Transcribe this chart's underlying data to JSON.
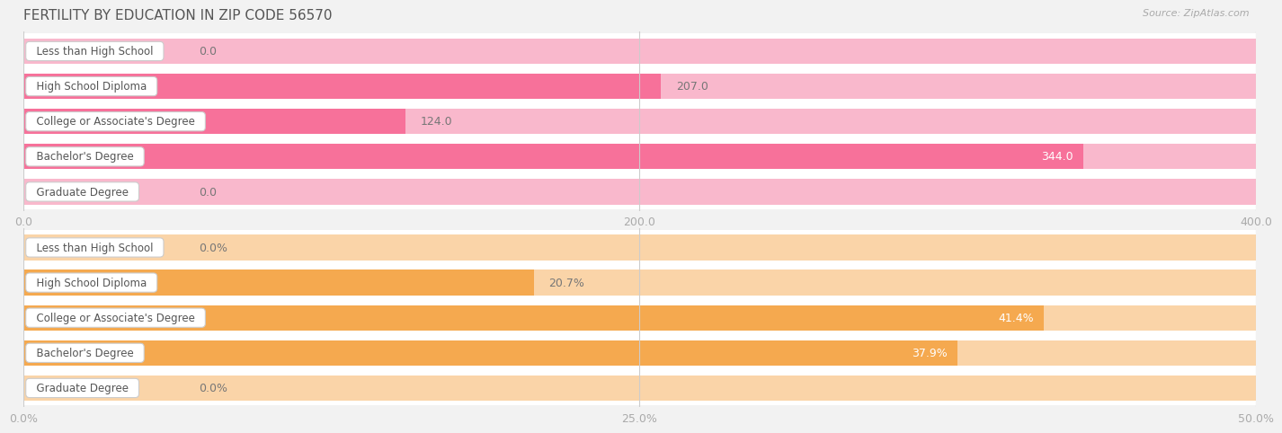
{
  "title": "FERTILITY BY EDUCATION IN ZIP CODE 56570",
  "source_text": "Source: ZipAtlas.com",
  "chart1": {
    "categories": [
      "Less than High School",
      "High School Diploma",
      "College or Associate's Degree",
      "Bachelor's Degree",
      "Graduate Degree"
    ],
    "values": [
      0.0,
      207.0,
      124.0,
      344.0,
      0.0
    ],
    "xlim": [
      0,
      400
    ],
    "xticks": [
      0.0,
      200.0,
      400.0
    ],
    "xtick_labels": [
      "0.0",
      "200.0",
      "400.0"
    ],
    "bar_color_main": "#F7719A",
    "bar_color_light": "#F9B8CC",
    "zero_stub_pct": 0.13
  },
  "chart2": {
    "categories": [
      "Less than High School",
      "High School Diploma",
      "College or Associate's Degree",
      "Bachelor's Degree",
      "Graduate Degree"
    ],
    "values": [
      0.0,
      20.7,
      41.4,
      37.9,
      0.0
    ],
    "xlim": [
      0,
      50
    ],
    "xticks": [
      0.0,
      25.0,
      50.0
    ],
    "xtick_labels": [
      "0.0%",
      "25.0%",
      "50.0%"
    ],
    "bar_color_main": "#F5A94F",
    "bar_color_light": "#FAD4A8",
    "zero_stub_pct": 0.13
  },
  "bg_color": "#f2f2f2",
  "row_bg_color": "#e8e8e8",
  "row_white_color": "#ffffff",
  "label_box_color": "#ffffff",
  "label_box_edge": "#cccccc",
  "title_color": "#555555",
  "tick_color": "#aaaaaa",
  "text_color": "#777777",
  "label_text_color": "#555555",
  "inside_label_color": "#ffffff",
  "grid_color": "#cccccc"
}
